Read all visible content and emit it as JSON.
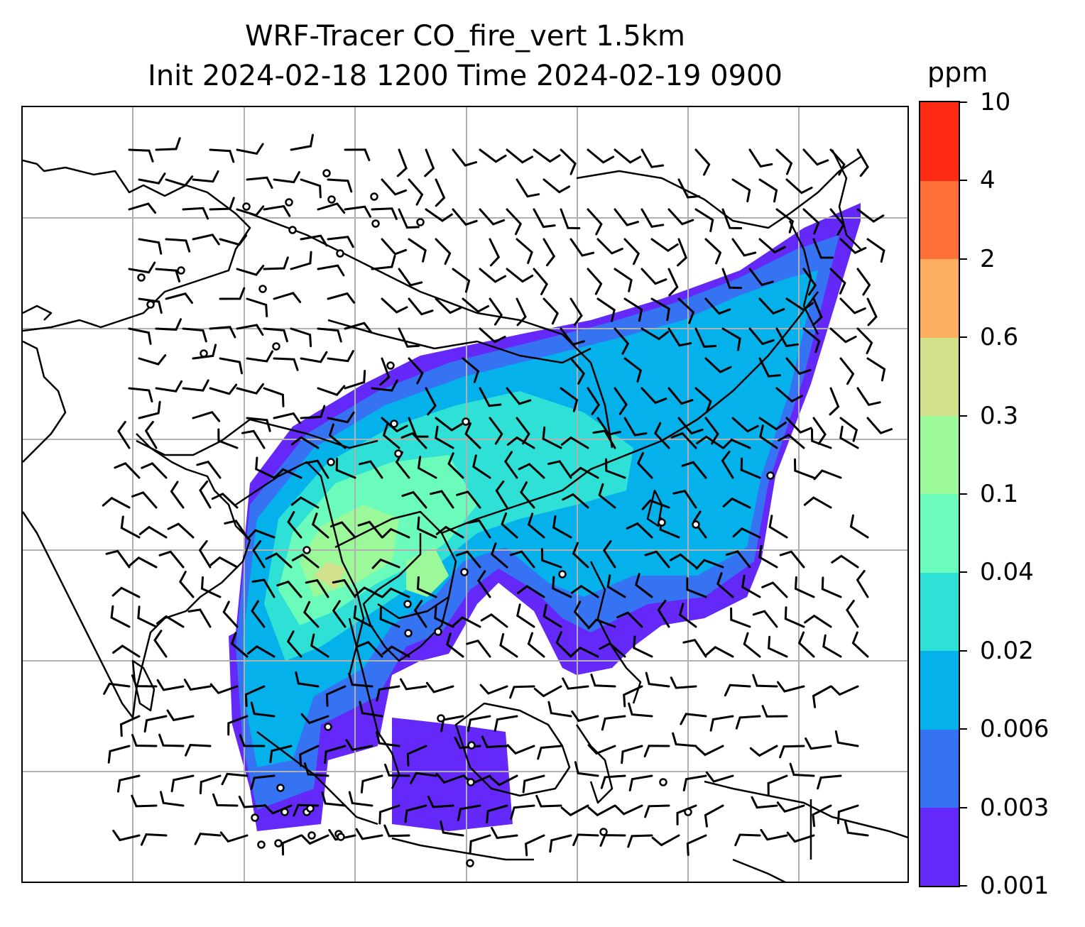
{
  "title": {
    "line1": "WRF-Tracer CO_fire_vert 1.5km",
    "line2": "Init 2024-02-18 1200 Time 2024-02-19 0900"
  },
  "colorbar": {
    "unit": "ppm",
    "levels": [
      "0.001",
      "0.003",
      "0.006",
      "0.02",
      "0.04",
      "0.1",
      "0.3",
      "0.6",
      "2",
      "4",
      "10"
    ],
    "colors": [
      "#6428f8",
      "#3573f3",
      "#05b1ea",
      "#2ee0d5",
      "#6bfcbc",
      "#9bf99a",
      "#d0e08b",
      "#fdae61",
      "#ff7038",
      "#ff2b14"
    ]
  },
  "map": {
    "gridlines": true,
    "coastline_color": "#000000",
    "wind_barbs": true,
    "calm_markers": true
  }
}
